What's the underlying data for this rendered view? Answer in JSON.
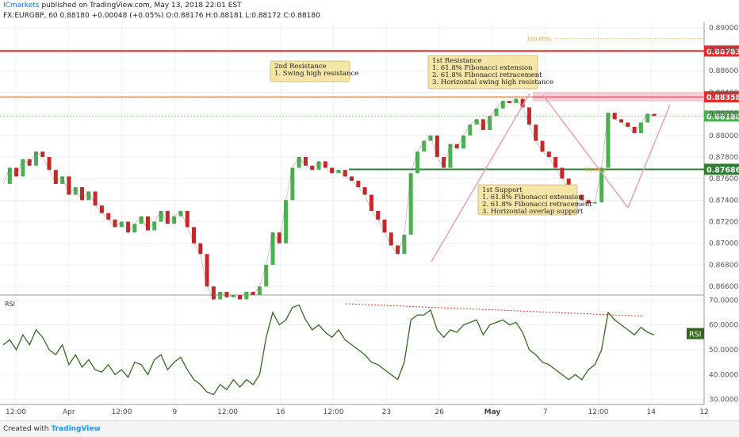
{
  "header": {
    "author": "ICmarkets",
    "published": "published on TradingView.com, May 13, 2018 22:01 EST",
    "symbol": "FX:EURGBP, 60",
    "last": "0.88180",
    "change": "+0.00048 (+0.05%)",
    "ohlc": "O:0.88176 H:0.88181 L:0.88172 C:0.88180"
  },
  "footer": {
    "created_with": "Created with",
    "brand": "TradingView"
  },
  "chart_data": {
    "type": "line",
    "price_axis": {
      "ticks": [
        0.866,
        0.868,
        0.87,
        0.872,
        0.874,
        0.876,
        0.878,
        0.88,
        0.882,
        0.884,
        0.886,
        0.888,
        0.89
      ],
      "tick_labels": [
        "0.86600",
        "0.86800",
        "0.87000",
        "0.87200",
        "0.87400",
        "0.87600",
        "0.87800",
        "0.88000",
        "0.88200",
        "0.88400",
        "0.88600",
        "0.88800",
        "0.89000"
      ],
      "range": [
        0.8652,
        0.8905
      ]
    },
    "rsi_axis": {
      "ticks": [
        30,
        40,
        50,
        60,
        70
      ],
      "tick_labels": [
        "30.0000",
        "40.0000",
        "50.0000",
        "60.0000",
        "70.0000"
      ],
      "range": [
        28,
        72
      ]
    },
    "time_axis": [
      "12:00",
      "Apr",
      "12:00",
      "9",
      "12:00",
      "16",
      "12:00",
      "23",
      "26",
      "May",
      "7",
      "12:00",
      "14",
      "12"
    ],
    "price_levels": [
      {
        "label": "0.88783",
        "value": 0.88783,
        "color": "#e03030"
      },
      {
        "label": "0.88358",
        "value": 0.88358,
        "color": "#e03030"
      },
      {
        "label": "0.88180",
        "value": 0.8818,
        "color": "#4caf50"
      },
      {
        "label": "0.87686",
        "value": 0.87686,
        "color": "#2e7d32"
      }
    ],
    "fib_label": "100.00%",
    "fib_label_2": "61.80%",
    "series": [
      {
        "name": "EURGBP",
        "values": [
          0.8755,
          0.877,
          0.8762,
          0.8778,
          0.8772,
          0.8785,
          0.878,
          0.8768,
          0.8755,
          0.8762,
          0.8745,
          0.8752,
          0.874,
          0.8748,
          0.8735,
          0.8728,
          0.8722,
          0.8715,
          0.872,
          0.871,
          0.8718,
          0.8725,
          0.8712,
          0.872,
          0.873,
          0.8718,
          0.8725,
          0.873,
          0.8715,
          0.87,
          0.869,
          0.866,
          0.8648,
          0.8655,
          0.865,
          0.8652,
          0.8648,
          0.8655,
          0.8652,
          0.866,
          0.868,
          0.871,
          0.87,
          0.874,
          0.877,
          0.878,
          0.8772,
          0.8768,
          0.8776,
          0.877,
          0.8765,
          0.8768,
          0.8762,
          0.8758,
          0.8752,
          0.8745,
          0.873,
          0.8722,
          0.871,
          0.8698,
          0.869,
          0.8708,
          0.8765,
          0.8785,
          0.8795,
          0.88,
          0.878,
          0.877,
          0.8792,
          0.8788,
          0.88,
          0.881,
          0.8815,
          0.8805,
          0.8818,
          0.8825,
          0.8832,
          0.883,
          0.8834,
          0.8826,
          0.881,
          0.8795,
          0.8785,
          0.878,
          0.877,
          0.876,
          0.875,
          0.8745,
          0.874,
          0.8737,
          0.8738,
          0.877,
          0.8821,
          0.8815,
          0.8812,
          0.8808,
          0.8802,
          0.8812,
          0.882,
          0.8818
        ]
      },
      {
        "name": "RSI",
        "values": [
          52,
          54,
          50,
          56,
          52,
          58,
          55,
          50,
          48,
          52,
          44,
          48,
          43,
          46,
          42,
          41,
          44,
          40,
          42,
          39,
          45,
          44,
          40,
          46,
          48,
          42,
          45,
          47,
          42,
          38,
          36,
          33,
          32,
          36,
          34,
          38,
          35,
          38,
          36,
          40,
          55,
          65,
          60,
          62,
          67,
          68,
          62,
          58,
          60,
          57,
          55,
          58,
          54,
          52,
          50,
          48,
          45,
          44,
          42,
          40,
          38,
          45,
          62,
          64,
          64,
          66,
          58,
          55,
          58,
          57,
          60,
          61,
          62,
          56,
          60,
          61,
          62,
          60,
          61,
          57,
          50,
          48,
          45,
          44,
          42,
          40,
          38,
          40,
          38,
          42,
          44,
          50,
          65,
          62,
          60,
          58,
          56,
          59,
          57,
          56
        ]
      }
    ],
    "annotations": [
      {
        "lines": [
          "2nd Resistance",
          "1. Swing high resistance"
        ]
      },
      {
        "lines": [
          "1st Resistance",
          "1. 61.8% Fibonacci extension",
          "2. 61.8% Fibonacci retracement",
          "3. Horizontal swing high resistance"
        ]
      },
      {
        "lines": [
          "1st Support",
          "1. 61.8% Fibonacci extension",
          "2. 61.8% Fibonacci retracement",
          "3. Horizontal overlap support"
        ]
      }
    ],
    "rsi_label": "RSI",
    "rsi_badge": "RSI",
    "colors": {
      "up": "#4caf50",
      "down": "#c62828",
      "rsi": "#33691e",
      "resistance": "#e03030",
      "support": "#2e7d32",
      "fib": "#e8a0b0",
      "annotation_bg": "#f5e6a8"
    }
  }
}
